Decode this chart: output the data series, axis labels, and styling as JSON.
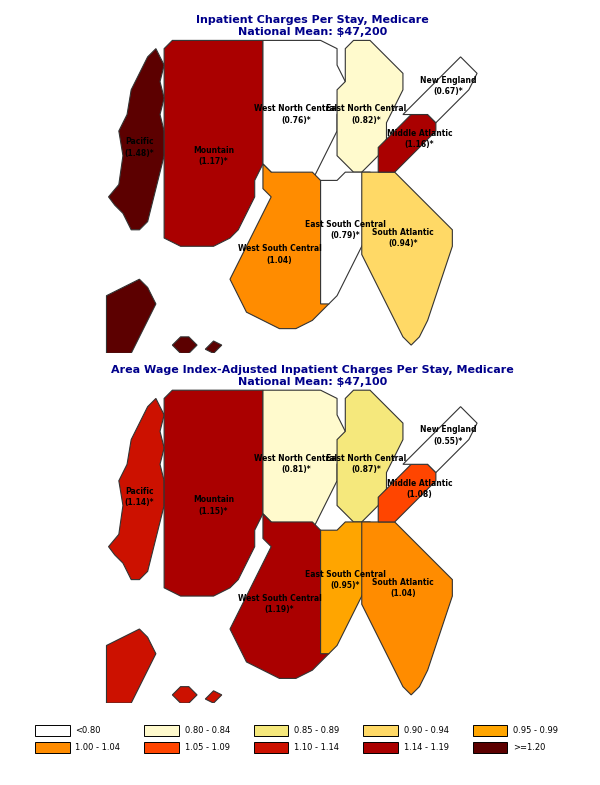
{
  "title1": "Inpatient Charges Per Stay, Medicare",
  "subtitle1": "National Mean: $47,200",
  "title2": "Area Wage Index-Adjusted Inpatient Charges Per Stay, Medicare",
  "subtitle2": "National Mean: $47,100",
  "map1": {
    "Pacific": 1.48,
    "Mountain": 1.17,
    "West North Central": 0.76,
    "West South Central": 1.04,
    "East North Central": 0.82,
    "East South Central": 0.79,
    "South Atlantic": 0.94,
    "Middle Atlantic": 1.16,
    "New England": 0.67
  },
  "map1_labels": {
    "Pacific": "Pacific\n(1.48)*",
    "Mountain": "Mountain\n(1.17)*",
    "West North Central": "West North Central\n(0.76)*",
    "West South Central": "West South Central\n(1.04)",
    "East North Central": "East North Central\n(0.82)*",
    "East South Central": "East South Central\n(0.79)*",
    "South Atlantic": "South Atlantic\n(0.94)*",
    "Middle Atlantic": "Middle Atlantic\n(1.16)*",
    "New England": "New England\n(0.67)*"
  },
  "map2": {
    "Pacific": 1.14,
    "Mountain": 1.15,
    "West North Central": 0.81,
    "West South Central": 1.19,
    "East North Central": 0.87,
    "East South Central": 0.95,
    "South Atlantic": 1.04,
    "Middle Atlantic": 1.08,
    "New England": 0.55
  },
  "map2_labels": {
    "Pacific": "Pacific\n(1.14)*",
    "Mountain": "Mountain\n(1.15)*",
    "West North Central": "West North Central\n(0.81)*",
    "West South Central": "West South Central\n(1.19)*",
    "East North Central": "East North Central\n(0.87)*",
    "East South Central": "East South Central\n(0.95)*",
    "South Atlantic": "South Atlantic\n(1.04)",
    "Middle Atlantic": "Middle Atlantic\n(1.08)",
    "New England": "New England\n(0.55)*"
  },
  "title_color": "#00008B",
  "label_color": "#000000"
}
